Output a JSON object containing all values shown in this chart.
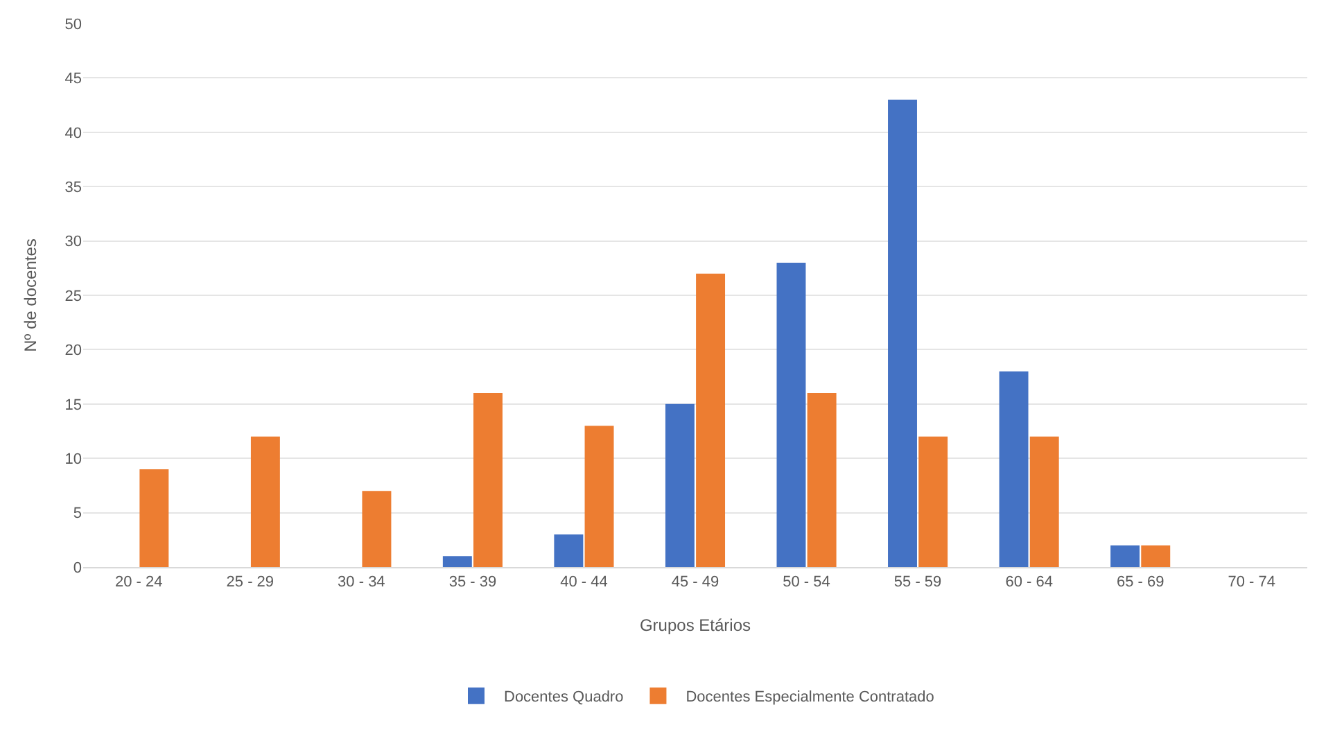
{
  "chart_data": {
    "type": "bar",
    "xlabel": "Grupos Etários",
    "ylabel": "Nº de docentes",
    "categories": [
      "20 - 24",
      "25 - 29",
      "30 - 34",
      "35 - 39",
      "40 - 44",
      "45 - 49",
      "50 - 54",
      "55 - 59",
      "60 - 64",
      "65 - 69",
      "70 - 74"
    ],
    "series": [
      {
        "name": "Docentes Quadro",
        "color": "#4472c4",
        "values": [
          0,
          0,
          0,
          1,
          3,
          15,
          28,
          43,
          18,
          2,
          0
        ]
      },
      {
        "name": "Docentes Especialmente Contratado",
        "color": "#ed7d31",
        "values": [
          9,
          12,
          7,
          16,
          13,
          27,
          16,
          12,
          12,
          2,
          0
        ]
      }
    ],
    "ylim": [
      0,
      50
    ],
    "yticks": [
      0,
      5,
      10,
      15,
      20,
      25,
      30,
      35,
      40,
      45,
      50
    ],
    "grid": "y",
    "legend": "bottom"
  }
}
